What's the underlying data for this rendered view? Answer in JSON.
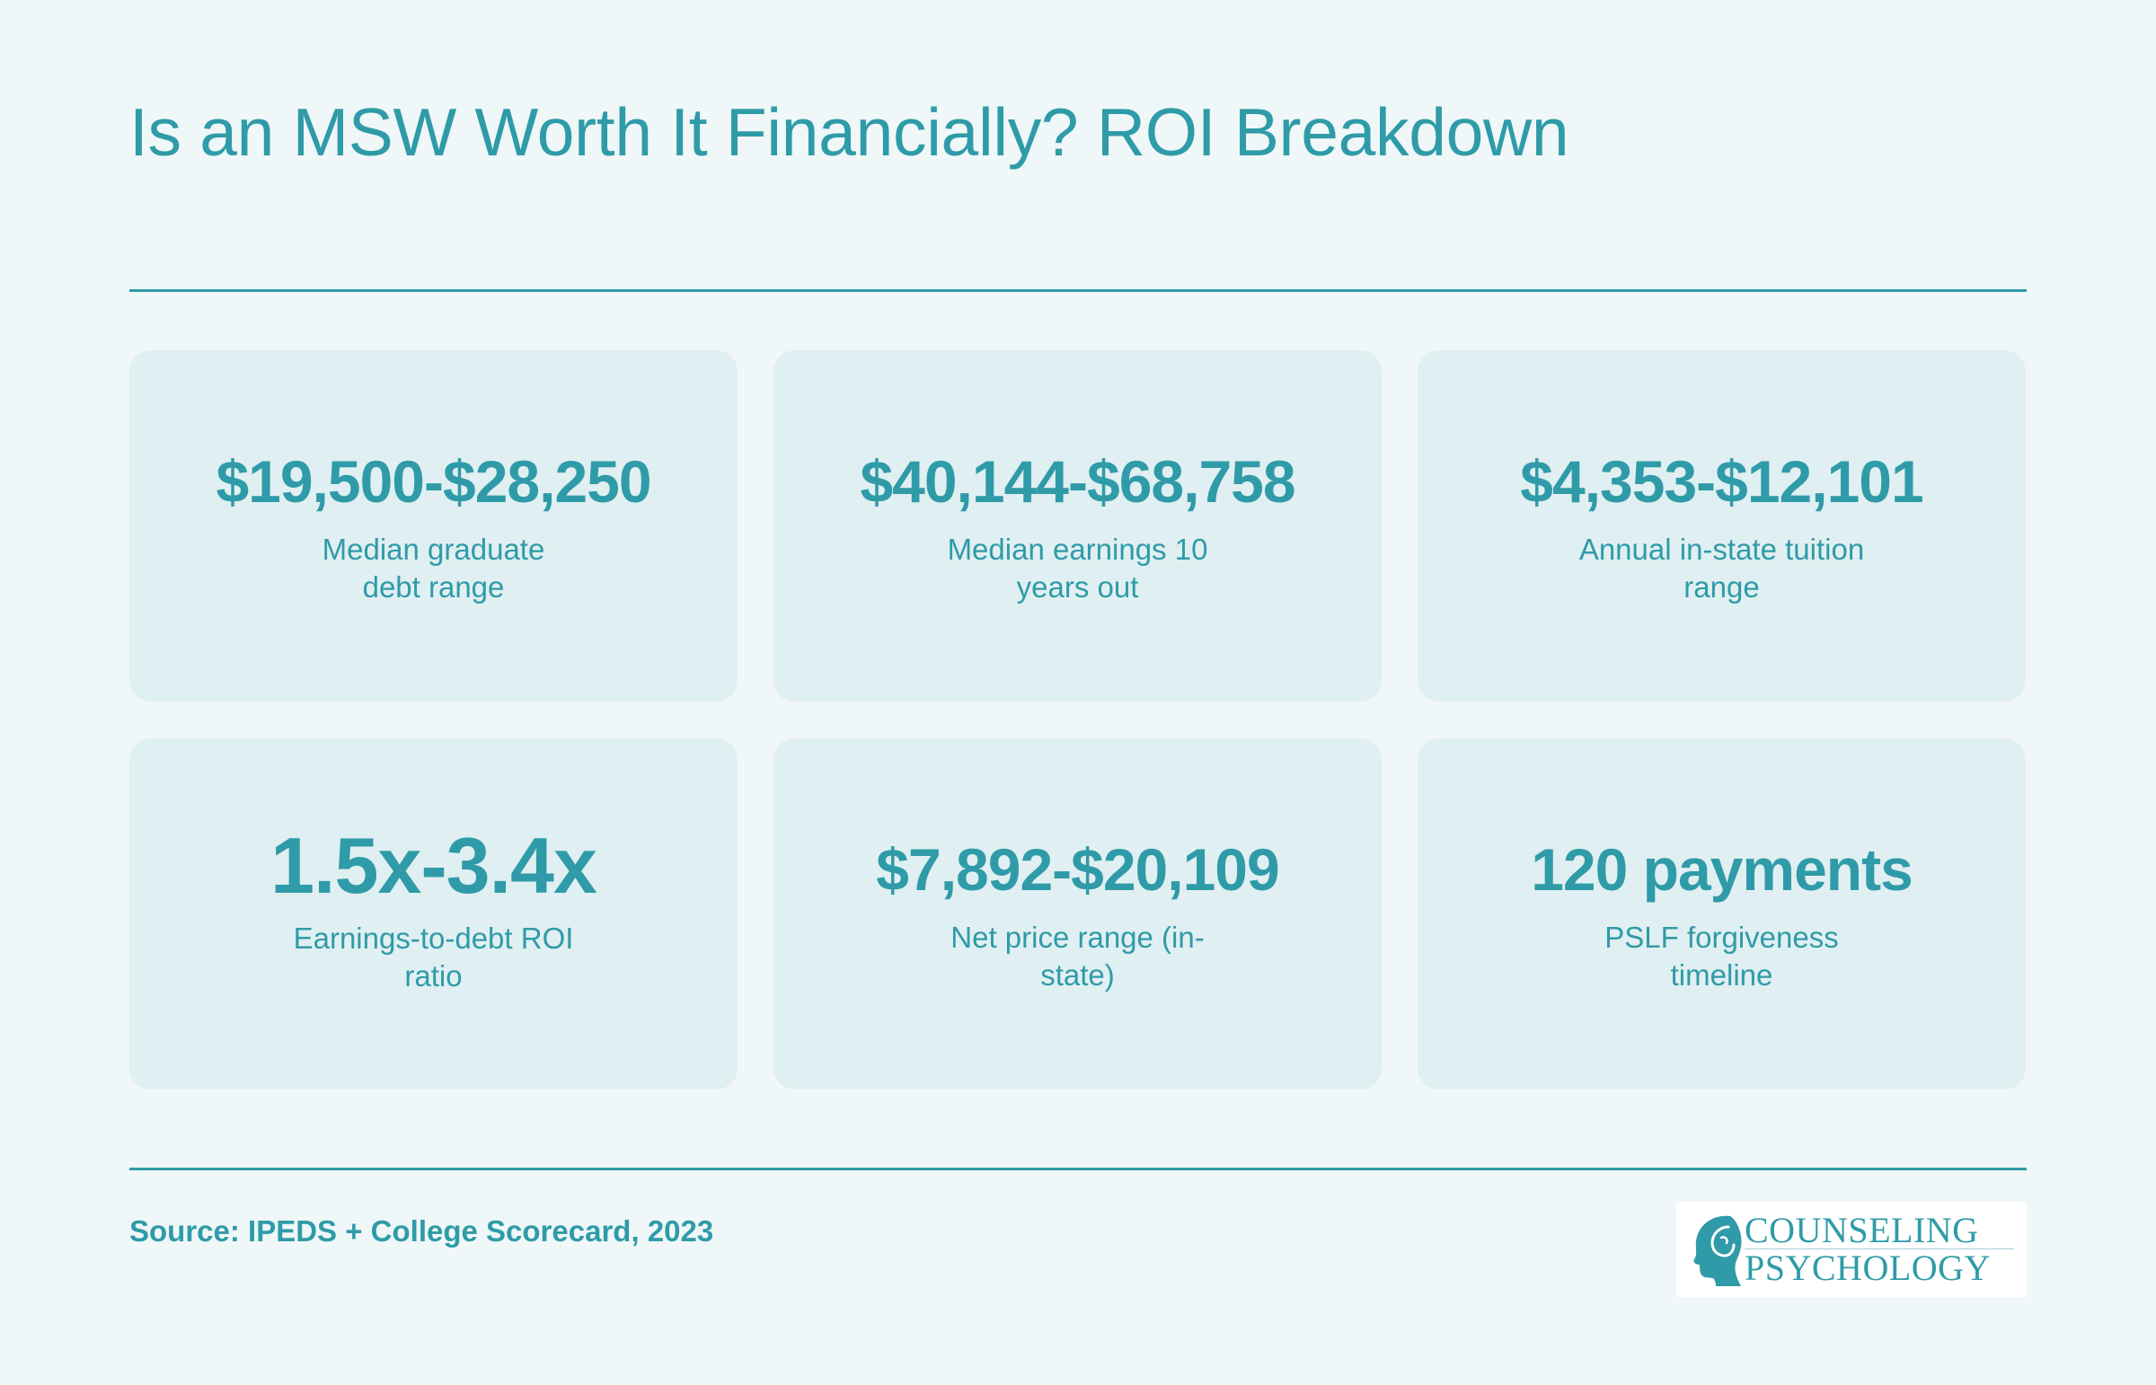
{
  "header": {
    "title": "Is an MSW Worth It Financially? ROI Breakdown"
  },
  "stats": [
    {
      "value": "$19,500-$28,250",
      "label": "Median graduate debt range"
    },
    {
      "value": "$40,144-$68,758",
      "label": "Median earnings 10 years out"
    },
    {
      "value": "$4,353-$12,101",
      "label": "Annual in-state tuition range"
    },
    {
      "value": "1.5x-3.4x",
      "label": "Earnings-to-debt ROI ratio"
    },
    {
      "value": "$7,892-$20,109",
      "label": "Net price range (in-state)"
    },
    {
      "value": "120 payments",
      "label": "PSLF forgiveness timeline"
    }
  ],
  "footer": {
    "source": "Source: IPEDS + College Scorecard, 2023",
    "logo_line1": "COUNSELING",
    "logo_line2": "PSYCHOLOGY"
  },
  "colors": {
    "accent": "#2f9ba8",
    "background": "#eff7f8",
    "card": "#e0eff1"
  }
}
